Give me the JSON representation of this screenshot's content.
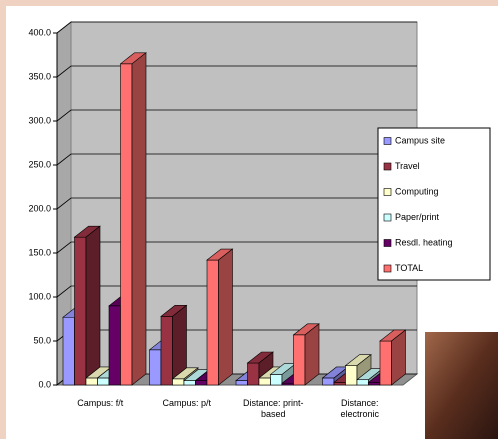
{
  "chart_data": {
    "type": "bar3d",
    "categories": [
      "Campus: f/t",
      "Campus: p/t",
      "Distance: print-based",
      "Distance: electronic"
    ],
    "series": [
      {
        "name": "Campus site",
        "color": "#9999ff",
        "values": [
          77,
          40,
          5,
          8
        ]
      },
      {
        "name": "Travel",
        "color": "#993344",
        "values": [
          168,
          78,
          25,
          3
        ]
      },
      {
        "name": "Computing",
        "color": "#ffffcc",
        "values": [
          8,
          7,
          8,
          22
        ]
      },
      {
        "name": "Paper/print",
        "color": "#ccffff",
        "values": [
          8,
          5,
          12,
          6
        ]
      },
      {
        "name": "Resdl. heating",
        "color": "#660066",
        "values": [
          90,
          5,
          2,
          3
        ]
      },
      {
        "name": "TOTAL",
        "color": "#ff7070",
        "values": [
          365,
          142,
          57,
          50
        ]
      }
    ],
    "ylim": [
      0,
      400
    ],
    "yticks": [
      {
        "value": 0,
        "label": "0.0"
      },
      {
        "value": 50,
        "label": "50.0"
      },
      {
        "value": 100,
        "label": "100.0"
      },
      {
        "value": 150,
        "label": "150.0"
      },
      {
        "value": 200,
        "label": "200.0"
      },
      {
        "value": 250,
        "label": "250.0"
      },
      {
        "value": 300,
        "label": "300.0"
      },
      {
        "value": 350,
        "label": "350.0"
      },
      {
        "value": 400,
        "label": "400.0"
      }
    ],
    "grid": true,
    "legend": "right"
  }
}
